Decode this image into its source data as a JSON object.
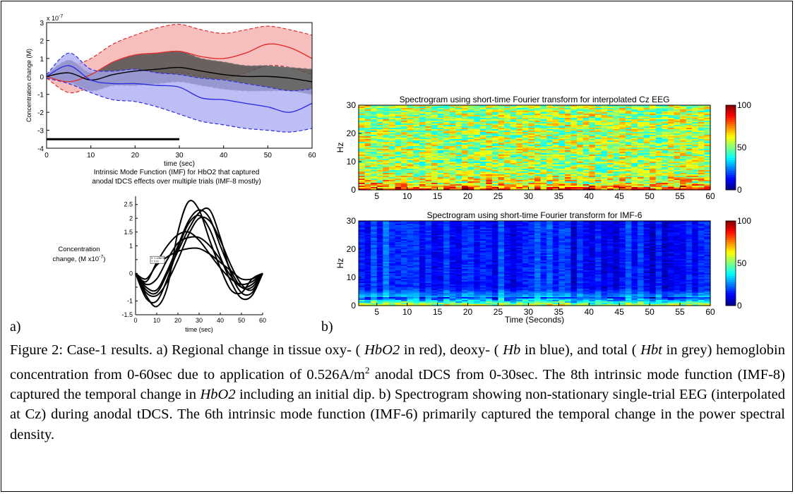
{
  "figure_labels": {
    "a": "a)",
    "b": "b)"
  },
  "caption": {
    "parts": [
      "Figure 2: Case-1 results. a) Regional change in tissue oxy- ( ",
      "HbO2",
      " in red), deoxy- ( ",
      "Hb",
      " in blue), and total ( ",
      "Hbt",
      " in grey) hemoglobin concentration from 0-60sec due to application of 0.526A/m",
      "2",
      " anodal tDCS from 0-30sec. The 8th intrinsic mode function (IMF-8) captured the temporal change in ",
      "HbO2",
      " including an initial dip. b) Spectrogram showing non-stationary single-trial EEG (interpolated at Cz) during anodal tDCS. The 6th intrinsic mode function (IMF-6) primarily captured the temporal change in the power spectral density."
    ]
  },
  "chart_data": [
    {
      "type": "line",
      "panel": "a-top",
      "xlabel": "time (sec)",
      "ylabel": "Concentration change (M)",
      "yscale_label": "x 10",
      "yscale_exp": "-7",
      "xlim": [
        0,
        60
      ],
      "ylim": [
        -4,
        3
      ],
      "xticks": [
        0,
        10,
        20,
        30,
        40,
        50,
        60
      ],
      "yticks": [
        -4,
        -3,
        -2,
        -1,
        0,
        1,
        2,
        3
      ],
      "x": [
        0,
        5,
        10,
        15,
        20,
        25,
        30,
        35,
        40,
        45,
        50,
        55,
        60
      ],
      "series": [
        {
          "color": "#e03030",
          "fill": "#f4a8a8",
          "mean": [
            0,
            -0.3,
            0.1,
            0.8,
            1.2,
            1.3,
            1.4,
            1.1,
            1.0,
            1.3,
            1.8,
            1.6,
            1.0
          ],
          "upper": [
            0.1,
            0.5,
            1.0,
            1.8,
            2.3,
            2.7,
            2.9,
            2.6,
            2.4,
            2.6,
            2.8,
            2.6,
            2.3
          ],
          "lower": [
            -0.1,
            -0.9,
            -0.6,
            -0.3,
            0.0,
            0.1,
            0.2,
            0.0,
            -0.1,
            0.2,
            0.6,
            0.5,
            0.1
          ]
        },
        {
          "color": "#000000",
          "fill": "#505050",
          "mean": [
            0,
            0.2,
            -0.2,
            0.1,
            0.3,
            0.4,
            0.5,
            0.3,
            0.1,
            0.0,
            0.0,
            -0.1,
            -0.3
          ],
          "upper": [
            0.1,
            0.9,
            0.2,
            0.8,
            1.2,
            1.3,
            1.4,
            1.0,
            0.8,
            0.6,
            0.6,
            0.5,
            0.4
          ],
          "lower": [
            -0.1,
            -0.3,
            -0.8,
            -0.5,
            -0.5,
            -0.4,
            -0.3,
            -0.5,
            -0.7,
            -0.8,
            -0.8,
            -0.8,
            -1.0
          ]
        },
        {
          "color": "#3030e0",
          "fill": "#a8a8f4",
          "mean": [
            0,
            0.6,
            -0.2,
            -0.4,
            -0.4,
            -0.5,
            -0.6,
            -1.2,
            -1.3,
            -1.5,
            -1.7,
            -2.0,
            -1.5
          ],
          "upper": [
            0.1,
            1.3,
            0.4,
            0.3,
            0.4,
            0.2,
            0.1,
            -0.1,
            -0.2,
            -0.4,
            -0.6,
            -0.8,
            -0.7
          ],
          "lower": [
            -0.1,
            -0.4,
            -0.9,
            -1.3,
            -1.4,
            -1.7,
            -2.1,
            -2.5,
            -2.7,
            -2.9,
            -3.0,
            -3.1,
            -2.9
          ]
        }
      ],
      "stimulus_bar": {
        "x": [
          0,
          30
        ],
        "y": -3.5
      }
    },
    {
      "type": "line",
      "panel": "a-bottom",
      "title": "Intrinsic Mode Function (IMF) for HbO2 that captured anodal tDCS effects over multiple trials (IMF-8 mostly)",
      "xlabel": "time (sec)",
      "ylabel_line1": "Concentration",
      "ylabel_line2": "change, (M x10",
      "ylabel_exp": "-7",
      "xlim": [
        0,
        60
      ],
      "ylim": [
        -1.5,
        2.8
      ],
      "xticks": [
        0,
        10,
        20,
        30,
        40,
        50,
        60
      ],
      "yticks": [
        -1.5,
        -1,
        -0.5,
        0,
        0.5,
        1,
        1.5,
        2,
        2.5
      ],
      "ytick_labels": [
        "-1.5",
        "-1",
        "",
        "0",
        "",
        "1",
        "1.5",
        "2",
        "2.5"
      ],
      "x": [
        0,
        5,
        10,
        15,
        20,
        25,
        30,
        35,
        40,
        45,
        50,
        55,
        60
      ],
      "series": [
        {
          "values": [
            0,
            -0.8,
            -1.2,
            -0.5,
            1.5,
            2.6,
            2.3,
            1.2,
            0.2,
            -0.6,
            -0.7,
            -0.2,
            0
          ]
        },
        {
          "values": [
            0,
            -0.3,
            0.4,
            1.0,
            1.4,
            1.5,
            1.2,
            0.7,
            0.2,
            -0.2,
            -0.4,
            -0.3,
            0
          ]
        },
        {
          "values": [
            0,
            -0.5,
            -0.6,
            0.1,
            1.0,
            1.9,
            2.3,
            2.0,
            1.0,
            0.1,
            -0.5,
            -0.5,
            0
          ]
        },
        {
          "values": [
            0,
            -0.6,
            -0.7,
            0.0,
            0.8,
            1.6,
            2.2,
            2.3,
            1.3,
            0.0,
            -0.7,
            -0.7,
            0
          ]
        },
        {
          "values": [
            0,
            -0.2,
            0.3,
            0.6,
            0.8,
            0.9,
            0.9,
            0.7,
            0.4,
            0.1,
            -0.2,
            -0.2,
            0
          ]
        },
        {
          "values": [
            0,
            -0.7,
            -0.8,
            -0.3,
            0.5,
            1.4,
            2.0,
            1.9,
            1.2,
            0.3,
            -0.4,
            -0.6,
            0
          ]
        },
        {
          "values": [
            0,
            -0.4,
            -0.2,
            0.5,
            1.1,
            1.3,
            1.3,
            1.0,
            0.5,
            -0.1,
            -0.5,
            -0.4,
            0
          ]
        },
        {
          "values": [
            0,
            -0.9,
            -1.0,
            -0.2,
            0.9,
            1.8,
            2.1,
            1.6,
            0.6,
            -0.3,
            -0.9,
            -0.8,
            0
          ]
        }
      ],
      "annotation_lines": [
        "X: 1.128e+03",
        "Y: 5.02"
      ]
    },
    {
      "type": "heatmap",
      "panel": "b-top",
      "title": "Spectrogram using short-time Fourier transform for interpolated Cz EEG",
      "ylabel": "Hz",
      "xlim": [
        2,
        60
      ],
      "ylim": [
        0,
        30
      ],
      "xticks": [
        5,
        10,
        15,
        20,
        25,
        30,
        35,
        40,
        45,
        50,
        55,
        60
      ],
      "yticks": [
        0,
        10,
        20,
        30
      ],
      "colorbar": {
        "min": 0,
        "max": 100,
        "ticks": [
          0,
          50,
          100
        ]
      },
      "dominant_level": 55
    },
    {
      "type": "heatmap",
      "panel": "b-bottom",
      "title": "Spectrogram using short-time Fourier transform for IMF-6",
      "xlabel": "Time (Seconds)",
      "ylabel": "Hz",
      "xlim": [
        2,
        60
      ],
      "ylim": [
        0,
        30
      ],
      "xticks": [
        5,
        10,
        15,
        20,
        25,
        30,
        35,
        40,
        45,
        50,
        55,
        60
      ],
      "yticks": [
        0,
        10,
        20,
        30
      ],
      "colorbar": {
        "min": 0,
        "max": 100,
        "ticks": [
          0,
          50,
          100
        ]
      },
      "dominant_level": 18
    }
  ]
}
